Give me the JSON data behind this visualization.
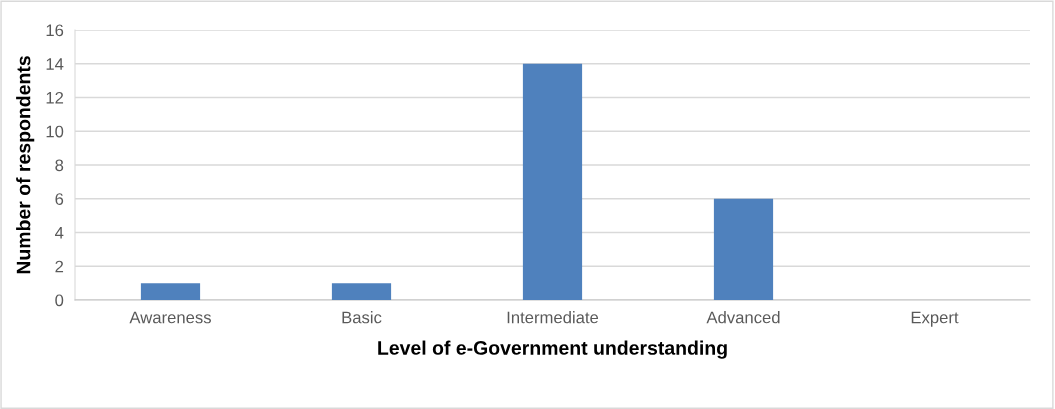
{
  "chart_data": {
    "type": "bar",
    "xlabel": "Level of e-Government understanding",
    "ylabel": "Number of respondents",
    "categories": [
      "Awareness",
      "Basic",
      "Intermediate",
      "Advanced",
      "Expert"
    ],
    "values": [
      1,
      1,
      14,
      6,
      0
    ],
    "color": "#4f81bd",
    "ylim": [
      0,
      16
    ],
    "yticks": [
      0,
      2,
      4,
      6,
      8,
      10,
      12,
      14,
      16
    ],
    "grid": "y"
  }
}
